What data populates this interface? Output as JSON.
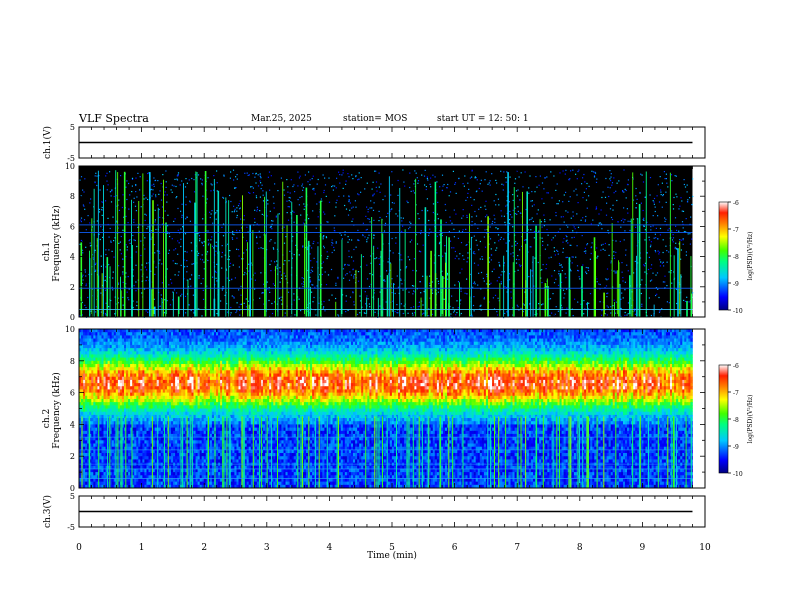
{
  "header": {
    "title": "VLF Spectra",
    "date": "Mar.25, 2025",
    "station": "station= MOS",
    "start": "start UT =  12: 50: 1"
  },
  "chart_data": [
    {
      "type": "line",
      "panel": "ch1-voltage",
      "ylabel": "ch.1(V)",
      "ylim": [
        -5,
        5
      ],
      "ytick_labels": [
        "5",
        "-5"
      ],
      "x": [
        0,
        9.8
      ],
      "values": [
        0,
        0
      ]
    },
    {
      "type": "heatmap",
      "panel": "ch1-spectrogram",
      "ylabel_top": "ch.1",
      "ylabel": "Frequency (kHz)",
      "ylim": [
        0,
        10
      ],
      "ytick_labels": [
        "0",
        "2",
        "4",
        "6",
        "8",
        "10"
      ],
      "xlim": [
        0,
        10
      ],
      "data_extent_min": 9.8,
      "colorbar": {
        "label": "log(PSD)(V²/Hz)",
        "range": [
          -10,
          -6
        ],
        "tick_labels": [
          "-6",
          "-7",
          "-8",
          "-9",
          "-10"
        ]
      }
    },
    {
      "type": "heatmap",
      "panel": "ch2-spectrogram",
      "ylabel_top": "ch.2",
      "ylabel": "Frequency (kHz)",
      "ylim": [
        0,
        10
      ],
      "ytick_labels": [
        "0",
        "2",
        "4",
        "6",
        "8",
        "10"
      ],
      "xlim": [
        0,
        10
      ],
      "data_extent_min": 9.8,
      "colorbar": {
        "label": "log(PSD)(V²/Hz)",
        "range": [
          -10,
          -6
        ],
        "tick_labels": [
          "-6",
          "-7",
          "-8",
          "-9",
          "-10"
        ]
      }
    },
    {
      "type": "line",
      "panel": "ch3-voltage",
      "ylabel": "ch.3(V)",
      "ylim": [
        -5,
        5
      ],
      "ytick_labels": [
        "5",
        "-5"
      ],
      "x": [
        0,
        9.8
      ],
      "values": [
        0,
        0
      ]
    }
  ],
  "xaxis": {
    "label": "Time (min)",
    "range": [
      0,
      10
    ],
    "tick_labels": [
      "0",
      "1",
      "2",
      "3",
      "4",
      "5",
      "6",
      "7",
      "8",
      "9",
      "10"
    ]
  }
}
